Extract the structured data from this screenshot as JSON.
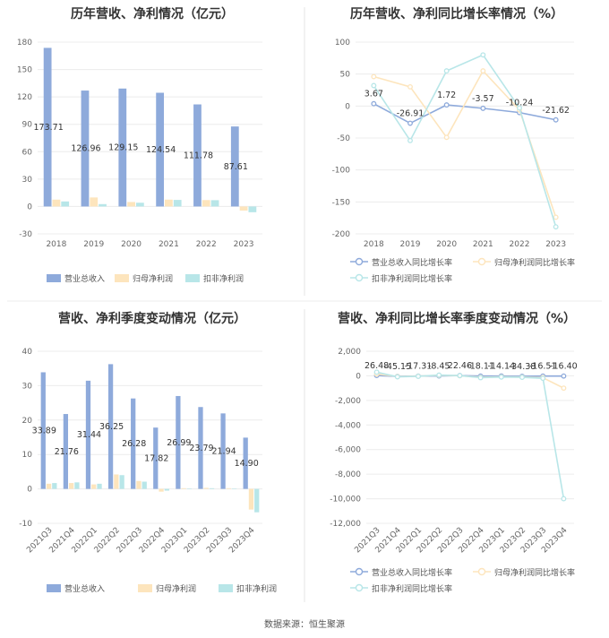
{
  "source_note": "数据来源：恒生聚源",
  "chart_data": [
    {
      "id": "c1",
      "type": "bar",
      "title": "历年营收、净利情况（亿元）",
      "categories": [
        "2018",
        "2019",
        "2020",
        "2021",
        "2022",
        "2023"
      ],
      "series": [
        {
          "name": "营业总收入",
          "color": "#8eaadb",
          "values": [
            173.71,
            126.96,
            129.15,
            124.54,
            111.78,
            87.61
          ],
          "labels": [
            "173.71",
            "126.96",
            "129.15",
            "124.54",
            "111.78",
            "87.61"
          ]
        },
        {
          "name": "归母净利润",
          "color": "#fde5bd",
          "values": [
            7.5,
            9.9,
            4.9,
            7.5,
            7.0,
            -4.5
          ]
        },
        {
          "name": "扣非净利润",
          "color": "#b8e6e8",
          "values": [
            5.5,
            2.6,
            4.1,
            7.2,
            6.9,
            -6.3
          ]
        }
      ],
      "ylim": [
        -30,
        180
      ],
      "yticks": [
        -30,
        0,
        30,
        60,
        90,
        120,
        150,
        180
      ],
      "legend": "bottom"
    },
    {
      "id": "c2",
      "type": "line",
      "title": "历年营收、净利同比增长率情况（%）",
      "categories": [
        "2018",
        "2019",
        "2020",
        "2021",
        "2022",
        "2023"
      ],
      "series": [
        {
          "name": "营业总收入同比增长率",
          "color": "#8eaadb",
          "values": [
            3.67,
            -26.91,
            1.72,
            -3.57,
            -10.24,
            -21.62
          ],
          "labels": [
            "3.67",
            "-26.91",
            "1.72",
            "-3.57",
            "-10.24",
            "-21.62"
          ]
        },
        {
          "name": "归母净利润同比增长率",
          "color": "#fde5bd",
          "values": [
            46,
            30,
            -49,
            55,
            -6,
            -174
          ]
        },
        {
          "name": "扣非净利润同比增长率",
          "color": "#b8e6e8",
          "values": [
            32,
            -54,
            55,
            80,
            -3,
            -189
          ]
        }
      ],
      "ylim": [
        -200,
        100
      ],
      "yticks": [
        -200,
        -150,
        -100,
        -50,
        0,
        50,
        100
      ],
      "legend": "bottom"
    },
    {
      "id": "c3",
      "type": "bar",
      "title": "营收、净利季度变动情况（亿元）",
      "categories": [
        "2021Q3",
        "2021Q4",
        "2022Q1",
        "2022Q2",
        "2022Q3",
        "2022Q4",
        "2023Q1",
        "2023Q2",
        "2023Q3",
        "2023Q4"
      ],
      "series": [
        {
          "name": "营业总收入",
          "color": "#8eaadb",
          "values": [
            33.89,
            21.76,
            31.44,
            36.25,
            26.28,
            17.82,
            26.99,
            23.79,
            21.94,
            14.9
          ],
          "labels": [
            "33.89",
            "21.76",
            "31.44",
            "36.25",
            "26.28",
            "17.82",
            "26.99",
            "23.79",
            "21.94",
            "14.90"
          ]
        },
        {
          "name": "归母净利润",
          "color": "#fde5bd",
          "values": [
            1.5,
            1.7,
            1.3,
            4.2,
            2.3,
            -0.8,
            0.2,
            0.3,
            0.2,
            -6.0
          ]
        },
        {
          "name": "扣非净利润",
          "color": "#b8e6e8",
          "values": [
            1.7,
            1.9,
            1.5,
            4.0,
            2.1,
            -0.5,
            0.1,
            0.2,
            0.1,
            -6.8
          ]
        }
      ],
      "ylim": [
        -10,
        40
      ],
      "yticks": [
        -10,
        0,
        10,
        20,
        30,
        40
      ],
      "legend": "bottom"
    },
    {
      "id": "c4",
      "type": "line",
      "title": "营收、净利同比增长率季度变动情况（%）",
      "categories": [
        "2021Q3",
        "2021Q4",
        "2022Q1",
        "2022Q2",
        "2022Q3",
        "2022Q4",
        "2023Q1",
        "2023Q2",
        "2023Q3",
        "2023Q4"
      ],
      "series": [
        {
          "name": "营业总收入同比增长率",
          "color": "#8eaadb",
          "values": [
            26.48,
            -45.15,
            -17.31,
            -8.45,
            22.46,
            -18.11,
            -14.14,
            -34.38,
            -16.51,
            -16.4
          ],
          "labels": [
            "26.48",
            "-45.15",
            "-17.31",
            "-8.45",
            "22.46",
            "-18.11",
            "-14.14",
            "-34.38",
            "-16.51",
            "-16.40"
          ]
        },
        {
          "name": "归母净利润同比增长率",
          "color": "#fde5bd",
          "values": [
            150,
            -60,
            -30,
            40,
            10,
            -120,
            -80,
            -100,
            -150,
            -1000
          ]
        },
        {
          "name": "扣非净利润同比增长率",
          "color": "#b8e6e8",
          "values": [
            300,
            -80,
            -40,
            60,
            20,
            -150,
            -100,
            -120,
            -200,
            -10000
          ]
        }
      ],
      "ylim": [
        -12000,
        2000
      ],
      "yticks": [
        -12000,
        -10000,
        -8000,
        -6000,
        -4000,
        -2000,
        0,
        2000
      ],
      "legend": "bottom"
    }
  ]
}
